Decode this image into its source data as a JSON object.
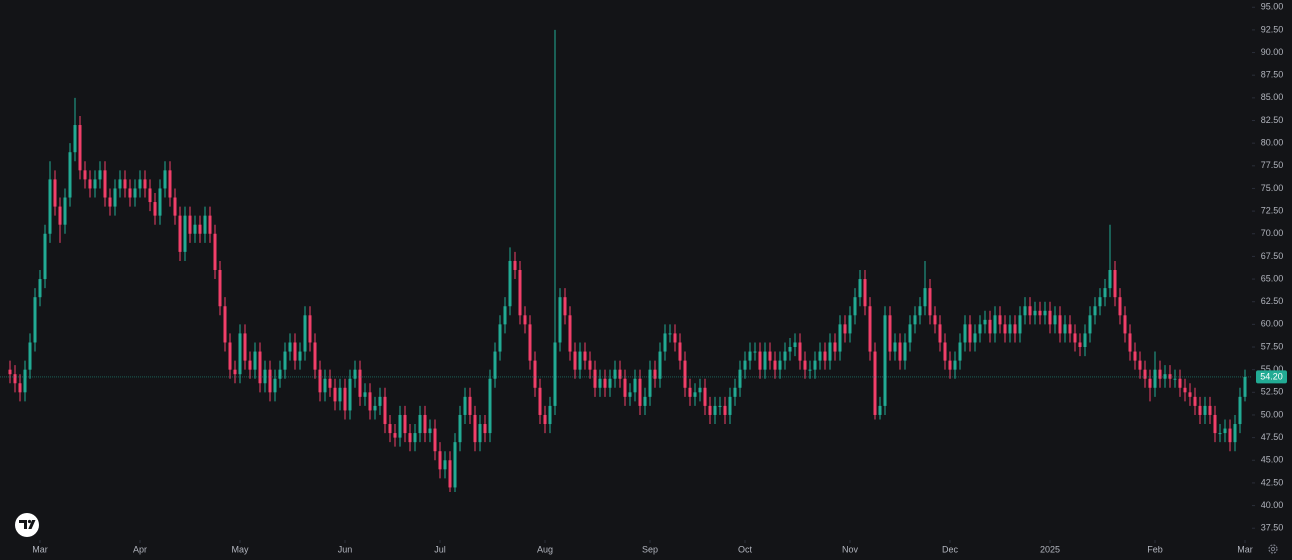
{
  "chart_data": {
    "type": "candlestick",
    "up_color": "#22ab94",
    "down_color": "#f23f6a",
    "grid": false,
    "ylim": [
      36.2,
      95.8
    ],
    "yticks": [
      {
        "value": 37.5,
        "label": "37.50"
      },
      {
        "value": 40,
        "label": "40.00"
      },
      {
        "value": 42.5,
        "label": "42.50"
      },
      {
        "value": 45,
        "label": "45.00"
      },
      {
        "value": 47.5,
        "label": "47.50"
      },
      {
        "value": 50,
        "label": "50.00"
      },
      {
        "value": 52.5,
        "label": "52.50"
      },
      {
        "value": 55,
        "label": "55.00"
      },
      {
        "value": 57.5,
        "label": "57.50"
      },
      {
        "value": 60,
        "label": "60.00"
      },
      {
        "value": 62.5,
        "label": "62.50"
      },
      {
        "value": 65,
        "label": "65.00"
      },
      {
        "value": 67.5,
        "label": "67.50"
      },
      {
        "value": 70,
        "label": "70.00"
      },
      {
        "value": 72.5,
        "label": "72.50"
      },
      {
        "value": 75,
        "label": "75.00"
      },
      {
        "value": 77.5,
        "label": "77.50"
      },
      {
        "value": 80,
        "label": "80.00"
      },
      {
        "value": 82.5,
        "label": "82.50"
      },
      {
        "value": 85,
        "label": "85.00"
      },
      {
        "value": 87.5,
        "label": "87.50"
      },
      {
        "value": 90,
        "label": "90.00"
      },
      {
        "value": 92.5,
        "label": "92.50"
      },
      {
        "value": 95,
        "label": "95.00"
      }
    ],
    "xticks": [
      {
        "value": 6,
        "label": "Mar"
      },
      {
        "value": 26,
        "label": "Apr"
      },
      {
        "value": 46,
        "label": "May"
      },
      {
        "value": 67,
        "label": "Jun"
      },
      {
        "value": 86,
        "label": "Jul"
      },
      {
        "value": 107,
        "label": "Aug"
      },
      {
        "value": 128,
        "label": "Sep"
      },
      {
        "value": 147,
        "label": "Oct"
      },
      {
        "value": 168,
        "label": "Nov"
      },
      {
        "value": 188,
        "label": "Dec"
      },
      {
        "value": 208,
        "label": "2025"
      },
      {
        "value": 229,
        "label": "Feb"
      },
      {
        "value": 247,
        "label": "Mar"
      }
    ],
    "last_price": {
      "value": 54.2,
      "label": "54.20"
    },
    "open": [
      55,
      54.5,
      53.5,
      52.5,
      55,
      58,
      63,
      65,
      70,
      76,
      73,
      71,
      74,
      79,
      82,
      77,
      76,
      75,
      76,
      77,
      74,
      73,
      75,
      76,
      75,
      74,
      75,
      76,
      75,
      73.5,
      72,
      75,
      77,
      74,
      72,
      68,
      72,
      70,
      71,
      70,
      72,
      70,
      66,
      62,
      58,
      55,
      54.5,
      59,
      56,
      55,
      57,
      53.5,
      55,
      52.5,
      54,
      55,
      57,
      58,
      56,
      57,
      61,
      58,
      55,
      52.5,
      54,
      53,
      51.5,
      53,
      50.5,
      54,
      55,
      52,
      52.5,
      50.5,
      51,
      52,
      49,
      48,
      47.5,
      50,
      48,
      47,
      48,
      50,
      48,
      48.5,
      46,
      44,
      45,
      42,
      47,
      50,
      52,
      50,
      47,
      49,
      48,
      54,
      57,
      60,
      62,
      67,
      66,
      61,
      60,
      56,
      53,
      50,
      49,
      51,
      58,
      63,
      61,
      57,
      55,
      57,
      56,
      55,
      53,
      54,
      53,
      54,
      55,
      54,
      52,
      52.5,
      54,
      51,
      52,
      55,
      54,
      57,
      59,
      59,
      58,
      56,
      53,
      52,
      52.5,
      53,
      51,
      50,
      51,
      51,
      50,
      52,
      53,
      55,
      56,
      57,
      57,
      55,
      57,
      56,
      55,
      56,
      57,
      57.5,
      58,
      56,
      55,
      55,
      56,
      57,
      56,
      58,
      57,
      60,
      59,
      61,
      63,
      65,
      62,
      57,
      50,
      51,
      61,
      57,
      58,
      56,
      58,
      60,
      61,
      62,
      64,
      61,
      60,
      58,
      56,
      55,
      56,
      58,
      60,
      58,
      59,
      60,
      60.5,
      59,
      61,
      60,
      59,
      60,
      59,
      61,
      62,
      61,
      61.5,
      61,
      61.5,
      60,
      61,
      59,
      60,
      59,
      58,
      57.5,
      59,
      61,
      62,
      63,
      64,
      66,
      63,
      61,
      59,
      57,
      56,
      55,
      54,
      53,
      55,
      54,
      54.5,
      54,
      54,
      53,
      52.5,
      52,
      51,
      50,
      51,
      50,
      48,
      48,
      48.5,
      47,
      49,
      52
    ],
    "high": [
      56,
      55.5,
      54.5,
      56,
      59,
      64,
      66,
      71,
      78,
      77,
      74,
      75,
      80,
      85,
      83,
      78,
      77,
      77,
      78,
      78,
      75,
      76,
      77,
      77,
      76,
      76,
      77,
      77,
      76,
      74.5,
      76,
      78,
      78,
      75,
      73,
      73,
      73,
      72,
      72,
      73,
      73,
      71,
      67,
      63,
      59,
      56,
      60,
      60,
      57,
      58,
      58,
      56,
      56,
      55,
      56,
      58,
      59,
      59,
      58,
      62,
      62,
      59,
      56,
      55,
      55,
      54,
      54,
      54,
      55,
      56,
      56,
      53.5,
      53.5,
      52,
      53,
      53,
      50,
      49,
      51,
      51,
      49,
      49,
      51,
      51,
      49.5,
      49.5,
      47,
      46,
      46,
      48,
      51,
      53,
      53,
      51,
      50,
      50,
      55,
      58,
      61,
      63,
      68.5,
      68,
      67,
      62,
      61,
      57,
      54,
      51,
      52,
      92.5,
      64,
      64,
      62,
      58,
      58,
      58,
      57,
      56,
      55,
      55,
      55,
      56,
      56,
      55,
      53.5,
      55,
      55,
      53,
      56,
      56,
      58,
      60,
      60,
      60,
      59,
      57,
      54,
      53.5,
      54,
      54,
      52,
      52,
      52,
      52,
      53,
      54,
      56,
      57,
      58,
      58,
      58,
      58,
      58,
      57,
      57,
      58,
      58.5,
      59,
      59,
      57,
      56,
      57,
      58,
      58,
      59,
      59,
      61,
      61,
      62,
      64,
      66,
      66,
      63,
      58,
      52,
      62,
      62,
      59,
      59,
      59,
      61,
      62,
      63,
      67,
      65,
      62,
      61,
      59,
      57,
      57,
      59,
      61,
      61,
      60,
      61,
      61.5,
      61.5,
      62,
      62,
      61,
      61,
      61,
      62,
      63,
      63,
      62.5,
      62.5,
      62.5,
      62.5,
      62,
      62,
      61,
      61,
      60,
      59,
      60,
      62,
      63,
      64,
      65,
      71,
      67,
      64,
      62,
      60,
      58,
      57,
      56,
      55,
      57,
      56,
      55.5,
      55.5,
      55,
      55,
      54,
      53.5,
      53,
      52,
      52,
      52,
      51,
      49,
      49.5,
      49.5,
      50,
      53,
      55
    ],
    "low": [
      53.5,
      52.5,
      51.5,
      51.5,
      54,
      57,
      62,
      64,
      69,
      72,
      69,
      70,
      73,
      78,
      76,
      75,
      74,
      74,
      75,
      73,
      72,
      72,
      74,
      74,
      73,
      73,
      74,
      74,
      72.5,
      71,
      71,
      74,
      73,
      71,
      67,
      67,
      69,
      69,
      69,
      69,
      69,
      65,
      61,
      57,
      54,
      53.5,
      53.5,
      55,
      54,
      54,
      52.5,
      52.5,
      51.5,
      51.5,
      53,
      54,
      56,
      55,
      55,
      56,
      57,
      54,
      51.5,
      51.5,
      52,
      50.5,
      50.5,
      49.5,
      49.5,
      53,
      51,
      51,
      49.5,
      49.5,
      50,
      48,
      47,
      46.5,
      46.5,
      47,
      46,
      46,
      47,
      47,
      47,
      45,
      43,
      43,
      41.5,
      41.5,
      46,
      49,
      49,
      46,
      46,
      47,
      47,
      53,
      56,
      59,
      61,
      65,
      60,
      59,
      55,
      52,
      49,
      48,
      48,
      50,
      57,
      60,
      56,
      54,
      54,
      55,
      54,
      52,
      52,
      52,
      52,
      53,
      53,
      51,
      51,
      51.5,
      50,
      50,
      51,
      53,
      53,
      56,
      58,
      57,
      55,
      52,
      51,
      51,
      51.5,
      50,
      49,
      49,
      50,
      49,
      49,
      51,
      52,
      54,
      55,
      56,
      54,
      54,
      55,
      54,
      54,
      55,
      56,
      56.5,
      55,
      54,
      54,
      54,
      55,
      55,
      55,
      56,
      56,
      58,
      58,
      60,
      62,
      61,
      56,
      49.5,
      49.5,
      50,
      56,
      56,
      55,
      55,
      57,
      59,
      60,
      61,
      60,
      59,
      57,
      55,
      54,
      54,
      55,
      57,
      57,
      57,
      58,
      59,
      58,
      58,
      59,
      58,
      58,
      58,
      58,
      60,
      60,
      60,
      60,
      60,
      59,
      59,
      58,
      58,
      58,
      57,
      56.5,
      56.5,
      58,
      60,
      61,
      62,
      63,
      62,
      60,
      58,
      56,
      55,
      54,
      53,
      51.5,
      52,
      53,
      53,
      53,
      53,
      52,
      51.5,
      51,
      50,
      49,
      49,
      49,
      47,
      47,
      47,
      46,
      46,
      48,
      51.5
    ],
    "close": [
      54.5,
      53.5,
      52.5,
      55,
      58,
      63,
      65,
      70,
      76,
      73,
      71,
      74,
      79,
      82,
      77,
      76,
      75,
      76,
      77,
      74,
      73,
      75,
      76,
      75,
      74,
      75,
      76,
      75,
      73.5,
      72,
      75,
      77,
      74,
      72,
      68,
      72,
      70,
      71,
      70,
      72,
      70,
      66,
      62,
      58,
      55,
      54.5,
      59,
      56,
      55,
      57,
      53.5,
      55,
      52.5,
      54,
      55,
      57,
      58,
      56,
      57,
      61,
      58,
      55,
      52.5,
      54,
      53,
      51.5,
      53,
      50.5,
      54,
      55,
      52,
      52.5,
      50.5,
      51,
      52,
      49,
      48,
      47.5,
      50,
      48,
      47,
      48,
      50,
      48,
      48.5,
      46,
      44,
      45,
      42,
      47,
      50,
      52,
      50,
      47,
      49,
      48,
      54,
      57,
      60,
      62,
      67,
      66,
      61,
      60,
      56,
      53,
      50,
      49,
      51,
      58,
      63,
      61,
      57,
      55,
      57,
      56,
      55,
      53,
      54,
      53,
      54,
      55,
      54,
      52,
      52.5,
      54,
      51,
      52,
      55,
      54,
      57,
      59,
      59,
      58,
      56,
      53,
      52,
      52.5,
      53,
      51,
      50,
      51,
      51,
      50,
      52,
      53,
      55,
      56,
      57,
      57,
      55,
      57,
      56,
      55,
      56,
      57,
      57.5,
      58,
      56,
      55,
      55,
      56,
      57,
      56,
      58,
      57,
      60,
      59,
      61,
      63,
      65,
      62,
      57,
      50,
      51,
      61,
      57,
      58,
      56,
      58,
      60,
      61,
      62,
      64,
      61,
      60,
      58,
      56,
      55,
      56,
      58,
      60,
      58,
      59,
      60,
      60.5,
      59,
      61,
      60,
      59,
      60,
      59,
      61,
      62,
      61,
      61.5,
      61,
      61.5,
      60,
      61,
      59,
      60,
      59,
      58,
      57.5,
      59,
      61,
      62,
      63,
      64,
      66,
      63,
      61,
      59,
      57,
      56,
      55,
      54,
      53,
      55,
      54,
      54.5,
      54,
      54,
      53,
      52.5,
      52,
      51,
      50,
      51,
      50,
      48,
      48,
      48.5,
      47,
      49,
      52,
      54.2
    ]
  }
}
